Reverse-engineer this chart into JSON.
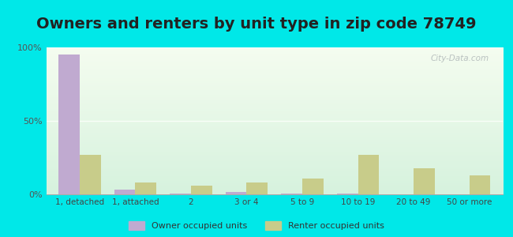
{
  "title": "Owners and renters by unit type in zip code 78749",
  "categories": [
    "1, detached",
    "1, attached",
    "2",
    "3 or 4",
    "5 to 9",
    "10 to 19",
    "20 to 49",
    "50 or more"
  ],
  "owner_values": [
    95,
    3,
    0.5,
    1.5,
    0.5,
    0.5,
    0,
    0
  ],
  "renter_values": [
    27,
    8,
    6,
    8,
    11,
    27,
    18,
    13
  ],
  "owner_color": "#c0aad0",
  "renter_color": "#c8cc8a",
  "background_outer": "#00e8e8",
  "ylim": [
    0,
    100
  ],
  "yticks": [
    0,
    50,
    100
  ],
  "ytick_labels": [
    "0%",
    "50%",
    "100%"
  ],
  "legend_owner": "Owner occupied units",
  "legend_renter": "Renter occupied units",
  "title_fontsize": 14,
  "bar_width": 0.38,
  "watermark": "City-Data.com"
}
